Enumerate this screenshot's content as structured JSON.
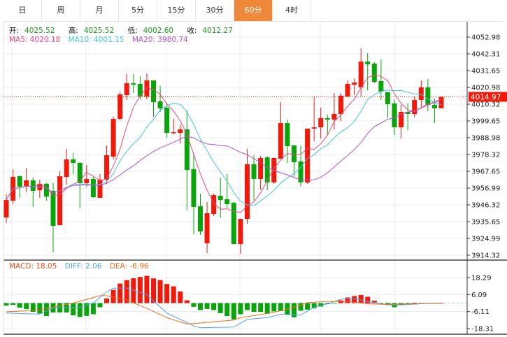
{
  "tabs": [
    {
      "label": "日",
      "active": false
    },
    {
      "label": "周",
      "active": false
    },
    {
      "label": "月",
      "active": false
    },
    {
      "label": "5分",
      "active": false
    },
    {
      "label": "15分",
      "active": false
    },
    {
      "label": "30分",
      "active": false
    },
    {
      "label": "60分",
      "active": true
    },
    {
      "label": "4时",
      "active": false
    }
  ],
  "ohlc_legend": {
    "open_label": "开:",
    "open": "4025.52",
    "high_label": "高:",
    "high": "4025.52",
    "low_label": "低:",
    "low": "4002.60",
    "close_label": "收:",
    "close": "4012.27"
  },
  "ma_legend": {
    "ma5": "MA5: 4020.18",
    "ma10": "MA10: 4001.15",
    "ma20": "MA20: 3980.74"
  },
  "macd_legend": {
    "macd": "MACD: 18.05",
    "diff": "DIFF: 2.06",
    "dea": "DEA: -6.96"
  },
  "colors": {
    "up": "#f0190a",
    "down": "#0aa50a",
    "ma5": "#ee4a80",
    "ma10": "#45c4dc",
    "ma20": "#b055c8",
    "diff": "#55a2ea",
    "dea": "#f0701e",
    "active_tab": "#f0883a"
  },
  "chart_data": {
    "type": "candlestick",
    "price_axis_ticks": [
      "4052.98",
      "4042.31",
      "4031.65",
      "4020.98",
      "4010.32",
      "3999.65",
      "3988.98",
      "3978.32",
      "3967.65",
      "3956.99",
      "3946.32",
      "3935.65",
      "3924.99",
      "3914.32"
    ],
    "price_range": [
      3914.32,
      4052.98
    ],
    "last_price": "4014.97",
    "candles": [
      [
        3938.3,
        3949.4,
        3953.0,
        3934.8
      ],
      [
        3949.0,
        3964.1,
        3969.0,
        3946.8
      ],
      [
        3964.5,
        3957.9,
        3965.0,
        3950.8
      ],
      [
        3957.9,
        3961.9,
        3969.9,
        3954.3
      ],
      [
        3961.9,
        3955.2,
        3963.6,
        3945.0
      ],
      [
        3955.6,
        3959.7,
        3962.3,
        3950.8
      ],
      [
        3959.7,
        3951.6,
        3960.1,
        3949.0
      ],
      [
        3955.2,
        3933.0,
        3960.1,
        3916.1
      ],
      [
        3933.4,
        3964.5,
        3967.7,
        3933.4
      ],
      [
        3964.1,
        3975.2,
        3981.9,
        3959.2
      ],
      [
        3975.2,
        3973.0,
        3979.2,
        3965.9
      ],
      [
        3973.0,
        3960.1,
        3973.4,
        3944.1
      ],
      [
        3960.1,
        3962.8,
        3971.7,
        3957.9
      ],
      [
        3962.8,
        3951.2,
        3964.1,
        3950.8
      ],
      [
        3950.8,
        3962.3,
        3965.9,
        3950.8
      ],
      [
        3962.3,
        3977.9,
        3984.1,
        3959.7
      ],
      [
        3977.0,
        4001.0,
        4002.3,
        3975.2
      ],
      [
        4001.0,
        4016.5,
        4017.9,
        4000.1
      ],
      [
        4016.1,
        4023.6,
        4029.4,
        4013.0
      ],
      [
        4023.6,
        4022.7,
        4029.4,
        4017.4
      ],
      [
        4023.2,
        4015.2,
        4028.1,
        4013.0
      ],
      [
        4015.2,
        4025.4,
        4029.9,
        4013.4
      ],
      [
        4025.4,
        4011.6,
        4025.4,
        4002.3
      ],
      [
        4012.1,
        4007.7,
        4021.9,
        4005.4
      ],
      [
        4008.1,
        3992.1,
        4011.2,
        3989.0
      ],
      [
        3992.1,
        3992.5,
        4001.0,
        3991.2
      ],
      [
        3992.1,
        3994.3,
        3997.4,
        3985.4
      ],
      [
        3994.3,
        3968.5,
        4006.3,
        3943.2
      ],
      [
        3969.0,
        3945.0,
        3979.6,
        3927.7
      ],
      [
        3945.4,
        3929.4,
        3953.4,
        3927.2
      ],
      [
        3921.9,
        3941.0,
        3948.1,
        3915.6
      ],
      [
        3940.5,
        3952.5,
        3953.4,
        3939.2
      ],
      [
        3952.1,
        3949.4,
        3963.6,
        3937.9
      ],
      [
        3949.9,
        3946.8,
        3965.9,
        3944.5
      ],
      [
        3947.7,
        3921.4,
        3948.1,
        3921.4
      ],
      [
        3921.4,
        3937.4,
        3937.4,
        3915.2
      ],
      [
        3937.4,
        3972.1,
        3981.9,
        3934.3
      ],
      [
        3972.1,
        3962.8,
        3977.9,
        3949.0
      ],
      [
        3962.8,
        3976.1,
        3977.4,
        3956.1
      ],
      [
        3976.5,
        3960.6,
        3977.4,
        3955.6
      ],
      [
        3960.6,
        3976.1,
        3976.5,
        3959.7
      ],
      [
        3975.7,
        3998.3,
        4011.6,
        3975.7
      ],
      [
        3998.3,
        3983.6,
        4000.5,
        3973.0
      ],
      [
        3984.1,
        3973.4,
        3984.5,
        3964.1
      ],
      [
        3973.9,
        3960.6,
        3984.0,
        3958.0
      ],
      [
        3960.5,
        3994.8,
        3994.8,
        3959.7
      ],
      [
        3994.8,
        3995.6,
        4014.8,
        3986.8
      ],
      [
        3995.6,
        4001.4,
        4008.1,
        3988.5
      ],
      [
        4001.4,
        4000.5,
        4003.6,
        3991.2
      ],
      [
        4000.5,
        4004.1,
        4017.4,
        3994.3
      ],
      [
        4004.1,
        4015.7,
        4017.4,
        3999.6
      ],
      [
        4015.2,
        4023.2,
        4025.4,
        4015.2
      ],
      [
        4022.7,
        4024.1,
        4026.7,
        4016.1
      ],
      [
        4021.0,
        4037.4,
        4045.9,
        4015.7
      ],
      [
        4037.4,
        4035.6,
        4042.8,
        4019.2
      ],
      [
        4036.1,
        4024.5,
        4037.0,
        4023.6
      ],
      [
        4025.0,
        4018.3,
        4038.8,
        4013.0
      ],
      [
        4017.9,
        4010.3,
        4018.3,
        4001.4
      ],
      [
        4010.8,
        3995.6,
        4013.4,
        3990.7
      ],
      [
        3995.6,
        4005.4,
        4009.9,
        3988.5
      ],
      [
        4005.4,
        4004.1,
        4010.8,
        3993.9
      ],
      [
        4004.1,
        4013.0,
        4015.2,
        4001.9
      ],
      [
        4013.0,
        4021.0,
        4025.4,
        4008.1
      ],
      [
        4021.0,
        4009.9,
        4026.3,
        4005.9
      ],
      [
        4009.9,
        4007.7,
        4013.9,
        3998.3
      ],
      [
        4007.7,
        4014.97,
        4014.97,
        4007.7
      ]
    ],
    "macd_axis_ticks": [
      "18.29",
      "6.09",
      "-6.11",
      "-18.31"
    ],
    "macd_range": [
      -18.31,
      18.29
    ],
    "macd_hist": [
      -1.8,
      -1.3,
      -3.3,
      -4.3,
      -6.3,
      -7.5,
      -9.3,
      -6.7,
      -6.7,
      -6.7,
      -8.8,
      -10,
      -9.2,
      -8,
      -3,
      3.3,
      9.5,
      14,
      16.5,
      17.8,
      18.7,
      19.5,
      17.7,
      16.5,
      13.7,
      12,
      8.3,
      2,
      -2.7,
      -5,
      -4.2,
      -5,
      -7.2,
      -9.3,
      -11.7,
      -8,
      -5,
      -6.3,
      -6.3,
      -7.7,
      -6,
      -5.7,
      -8.5,
      -10.2,
      -5.5,
      -4.7,
      -3.8,
      -2.5,
      -0.8,
      -0.3,
      2,
      4,
      5,
      5.8,
      4.5,
      1.7,
      -0.3,
      -1,
      -3,
      -1.3,
      -0.8,
      0.2,
      0,
      -0.3,
      -0.3,
      0
    ],
    "diff": [
      [
        0,
        -7.2
      ],
      [
        5,
        -8
      ],
      [
        7,
        -3.3
      ],
      [
        11,
        -3
      ],
      [
        13,
        0
      ],
      [
        15,
        8
      ],
      [
        16,
        10.7
      ],
      [
        18,
        10.7
      ],
      [
        21,
        6
      ],
      [
        24,
        -7.2
      ],
      [
        28,
        -16.3
      ],
      [
        29,
        -17.7
      ],
      [
        34,
        -17.2
      ],
      [
        36,
        -11.7
      ],
      [
        39,
        -10.5
      ],
      [
        41,
        -8
      ],
      [
        44,
        -8.5
      ],
      [
        46,
        -3
      ],
      [
        48,
        -0.5
      ],
      [
        50,
        2.8
      ],
      [
        52,
        3.3
      ],
      [
        54,
        1.2
      ],
      [
        57,
        -1.3
      ],
      [
        59,
        -1.3
      ],
      [
        62,
        -0.5
      ],
      [
        65,
        0
      ]
    ],
    "dea": [
      [
        0,
        -6.3
      ],
      [
        5,
        -5
      ],
      [
        10,
        0
      ],
      [
        14,
        5.3
      ],
      [
        15,
        5.3
      ],
      [
        18,
        2.3
      ],
      [
        21,
        -3.8
      ],
      [
        24,
        -10.5
      ],
      [
        27,
        -15
      ],
      [
        29,
        -14.3
      ],
      [
        34,
        -12.2
      ],
      [
        35,
        -10.5
      ],
      [
        40,
        -6.7
      ],
      [
        43,
        -3
      ],
      [
        45,
        0.3
      ],
      [
        48,
        1.2
      ],
      [
        51,
        1.2
      ],
      [
        54,
        -0.5
      ],
      [
        57,
        -1
      ],
      [
        62,
        -0.3
      ],
      [
        65,
        0
      ]
    ]
  }
}
